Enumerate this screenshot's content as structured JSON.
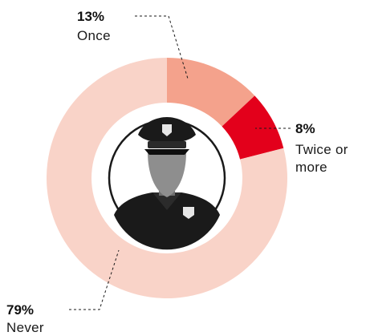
{
  "chart_data": {
    "type": "pie",
    "categories": [
      "Once",
      "Twice or more",
      "Never"
    ],
    "values": [
      13,
      8,
      79
    ],
    "value_labels": [
      "13%",
      "8%",
      "79%"
    ],
    "colors": [
      "#f4a28c",
      "#e3001b",
      "#f9d3c8"
    ]
  },
  "center_icon": "police-officer-icon",
  "colors": {
    "icon_ring": "#1a1a1a",
    "icon_fill": "#1a1a1a",
    "beard": "#8e8e8e",
    "badge": "#e6e6e6"
  }
}
